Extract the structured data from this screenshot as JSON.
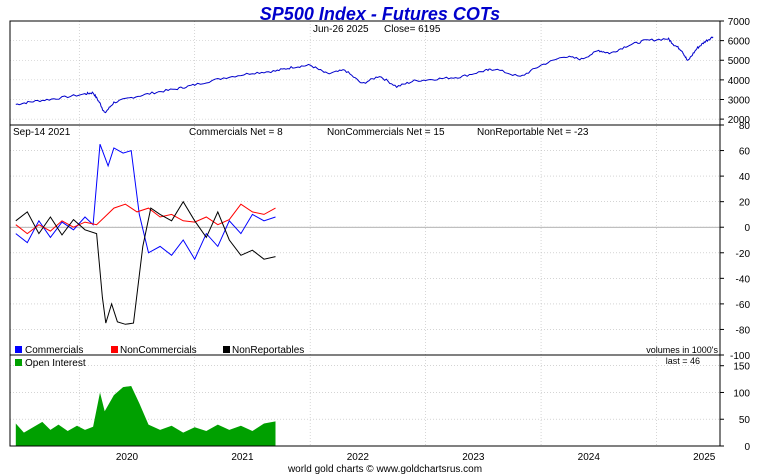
{
  "header": {
    "title": "SP500 Index - Futures COTs",
    "subtitle_date": "Jun-26  2025",
    "subtitle_close": "Close= 6195"
  },
  "info_bar": {
    "date": "Sep-14  2021",
    "commercials": "Commercials Net = 8",
    "noncommercials": "NonCommercials Net = 15",
    "nonreportable": "NonReportable Net = -23"
  },
  "legend": {
    "commercials": "Commercials",
    "noncommercials": "NonCommercials",
    "nonreportables": "NonReportables",
    "open_interest": "Open Interest",
    "volumes_note": "volumes in 1000's",
    "last_note": "last = 46"
  },
  "footer": "world gold charts © www.goldchartsrus.com",
  "colors": {
    "price": "#0000cc",
    "commercials": "#0000ff",
    "noncommercials": "#ff0000",
    "nonreportables": "#000000",
    "open_interest": "#00a000",
    "grid": "#bbbbbb",
    "title": "#0000cc"
  },
  "chart_data": [
    {
      "type": "line",
      "panel": "price",
      "x_ticks": [
        "2020",
        "2021",
        "2022",
        "2023",
        "2024",
        "2025"
      ],
      "ylim": [
        1700,
        7000
      ],
      "y_ticks": [
        2000,
        3000,
        4000,
        5000,
        6000,
        7000
      ],
      "series": [
        {
          "values": [
            {
              "x": 2019.45,
              "y": 2750
            },
            {
              "x": 2019.6,
              "y": 2900
            },
            {
              "x": 2019.8,
              "y": 3050
            },
            {
              "x": 2020.05,
              "y": 3280
            },
            {
              "x": 2020.12,
              "y": 3350
            },
            {
              "x": 2020.18,
              "y": 2800
            },
            {
              "x": 2020.22,
              "y": 2300
            },
            {
              "x": 2020.3,
              "y": 2850
            },
            {
              "x": 2020.45,
              "y": 3100
            },
            {
              "x": 2020.65,
              "y": 3350
            },
            {
              "x": 2020.85,
              "y": 3550
            },
            {
              "x": 2021.0,
              "y": 3750
            },
            {
              "x": 2021.25,
              "y": 4100
            },
            {
              "x": 2021.5,
              "y": 4350
            },
            {
              "x": 2021.7,
              "y": 4450
            },
            {
              "x": 2021.85,
              "y": 4650
            },
            {
              "x": 2022.0,
              "y": 4750
            },
            {
              "x": 2022.15,
              "y": 4300
            },
            {
              "x": 2022.3,
              "y": 4500
            },
            {
              "x": 2022.45,
              "y": 3800
            },
            {
              "x": 2022.6,
              "y": 4200
            },
            {
              "x": 2022.75,
              "y": 3650
            },
            {
              "x": 2022.9,
              "y": 3950
            },
            {
              "x": 2023.1,
              "y": 4050
            },
            {
              "x": 2023.3,
              "y": 4150
            },
            {
              "x": 2023.5,
              "y": 4450
            },
            {
              "x": 2023.6,
              "y": 4550
            },
            {
              "x": 2023.82,
              "y": 4150
            },
            {
              "x": 2024.0,
              "y": 4750
            },
            {
              "x": 2024.2,
              "y": 5200
            },
            {
              "x": 2024.35,
              "y": 5050
            },
            {
              "x": 2024.5,
              "y": 5500
            },
            {
              "x": 2024.6,
              "y": 5350
            },
            {
              "x": 2024.75,
              "y": 5750
            },
            {
              "x": 2024.9,
              "y": 6000
            },
            {
              "x": 2025.1,
              "y": 6100
            },
            {
              "x": 2025.15,
              "y": 5800
            },
            {
              "x": 2025.22,
              "y": 5500
            },
            {
              "x": 2025.27,
              "y": 4950
            },
            {
              "x": 2025.35,
              "y": 5600
            },
            {
              "x": 2025.42,
              "y": 5950
            },
            {
              "x": 2025.49,
              "y": 6195
            }
          ]
        }
      ]
    },
    {
      "type": "line",
      "panel": "net_positions",
      "ylim": [
        -100,
        80
      ],
      "y_ticks": [
        -100,
        -80,
        -60,
        -40,
        -20,
        0,
        20,
        40,
        60,
        80
      ],
      "series": [
        {
          "name": "Commercials",
          "values": [
            {
              "x": 2019.45,
              "y": -5
            },
            {
              "x": 2019.55,
              "y": -12
            },
            {
              "x": 2019.65,
              "y": 5
            },
            {
              "x": 2019.75,
              "y": -8
            },
            {
              "x": 2019.85,
              "y": 4
            },
            {
              "x": 2019.95,
              "y": -2
            },
            {
              "x": 2020.05,
              "y": 8
            },
            {
              "x": 2020.12,
              "y": 2
            },
            {
              "x": 2020.18,
              "y": 65
            },
            {
              "x": 2020.25,
              "y": 48
            },
            {
              "x": 2020.3,
              "y": 62
            },
            {
              "x": 2020.38,
              "y": 58
            },
            {
              "x": 2020.45,
              "y": 60
            },
            {
              "x": 2020.52,
              "y": 10
            },
            {
              "x": 2020.6,
              "y": -20
            },
            {
              "x": 2020.7,
              "y": -15
            },
            {
              "x": 2020.8,
              "y": -22
            },
            {
              "x": 2020.9,
              "y": -10
            },
            {
              "x": 2021.0,
              "y": -25
            },
            {
              "x": 2021.1,
              "y": -5
            },
            {
              "x": 2021.2,
              "y": -15
            },
            {
              "x": 2021.3,
              "y": 5
            },
            {
              "x": 2021.4,
              "y": -5
            },
            {
              "x": 2021.5,
              "y": 10
            },
            {
              "x": 2021.6,
              "y": 5
            },
            {
              "x": 2021.7,
              "y": 8
            }
          ]
        },
        {
          "name": "NonCommercials",
          "values": [
            {
              "x": 2019.45,
              "y": 2
            },
            {
              "x": 2019.55,
              "y": -5
            },
            {
              "x": 2019.65,
              "y": 2
            },
            {
              "x": 2019.75,
              "y": -3
            },
            {
              "x": 2019.85,
              "y": 5
            },
            {
              "x": 2019.95,
              "y": 0
            },
            {
              "x": 2020.05,
              "y": 4
            },
            {
              "x": 2020.15,
              "y": 2
            },
            {
              "x": 2020.22,
              "y": 8
            },
            {
              "x": 2020.3,
              "y": 15
            },
            {
              "x": 2020.4,
              "y": 18
            },
            {
              "x": 2020.5,
              "y": 12
            },
            {
              "x": 2020.6,
              "y": 15
            },
            {
              "x": 2020.7,
              "y": 8
            },
            {
              "x": 2020.8,
              "y": 10
            },
            {
              "x": 2020.9,
              "y": 5
            },
            {
              "x": 2021.0,
              "y": 4
            },
            {
              "x": 2021.1,
              "y": 8
            },
            {
              "x": 2021.2,
              "y": 2
            },
            {
              "x": 2021.3,
              "y": 6
            },
            {
              "x": 2021.4,
              "y": 18
            },
            {
              "x": 2021.5,
              "y": 12
            },
            {
              "x": 2021.6,
              "y": 10
            },
            {
              "x": 2021.7,
              "y": 15
            }
          ]
        },
        {
          "name": "NonReportables",
          "values": [
            {
              "x": 2019.45,
              "y": 5
            },
            {
              "x": 2019.55,
              "y": 12
            },
            {
              "x": 2019.65,
              "y": -5
            },
            {
              "x": 2019.75,
              "y": 8
            },
            {
              "x": 2019.85,
              "y": -6
            },
            {
              "x": 2019.95,
              "y": 6
            },
            {
              "x": 2020.05,
              "y": -2
            },
            {
              "x": 2020.15,
              "y": -5
            },
            {
              "x": 2020.2,
              "y": -55
            },
            {
              "x": 2020.23,
              "y": -75
            },
            {
              "x": 2020.28,
              "y": -60
            },
            {
              "x": 2020.33,
              "y": -74
            },
            {
              "x": 2020.4,
              "y": -76
            },
            {
              "x": 2020.47,
              "y": -75
            },
            {
              "x": 2020.55,
              "y": -15
            },
            {
              "x": 2020.62,
              "y": 15
            },
            {
              "x": 2020.7,
              "y": 10
            },
            {
              "x": 2020.8,
              "y": 5
            },
            {
              "x": 2020.9,
              "y": 20
            },
            {
              "x": 2021.0,
              "y": 5
            },
            {
              "x": 2021.1,
              "y": -8
            },
            {
              "x": 2021.2,
              "y": 12
            },
            {
              "x": 2021.3,
              "y": -10
            },
            {
              "x": 2021.4,
              "y": -22
            },
            {
              "x": 2021.5,
              "y": -18
            },
            {
              "x": 2021.6,
              "y": -25
            },
            {
              "x": 2021.7,
              "y": -23
            }
          ]
        }
      ]
    },
    {
      "type": "area",
      "panel": "open_interest",
      "ylim": [
        0,
        170
      ],
      "y_ticks": [
        0,
        50,
        100,
        150
      ],
      "series": [
        {
          "name": "Open Interest",
          "values": [
            {
              "x": 2019.45,
              "y": 42
            },
            {
              "x": 2019.52,
              "y": 25
            },
            {
              "x": 2019.6,
              "y": 35
            },
            {
              "x": 2019.68,
              "y": 45
            },
            {
              "x": 2019.75,
              "y": 30
            },
            {
              "x": 2019.82,
              "y": 40
            },
            {
              "x": 2019.9,
              "y": 28
            },
            {
              "x": 2019.98,
              "y": 38
            },
            {
              "x": 2020.05,
              "y": 30
            },
            {
              "x": 2020.12,
              "y": 36
            },
            {
              "x": 2020.18,
              "y": 100
            },
            {
              "x": 2020.22,
              "y": 65
            },
            {
              "x": 2020.3,
              "y": 95
            },
            {
              "x": 2020.38,
              "y": 110
            },
            {
              "x": 2020.45,
              "y": 112
            },
            {
              "x": 2020.52,
              "y": 80
            },
            {
              "x": 2020.6,
              "y": 40
            },
            {
              "x": 2020.7,
              "y": 30
            },
            {
              "x": 2020.8,
              "y": 38
            },
            {
              "x": 2020.9,
              "y": 25
            },
            {
              "x": 2021.0,
              "y": 35
            },
            {
              "x": 2021.1,
              "y": 28
            },
            {
              "x": 2021.2,
              "y": 40
            },
            {
              "x": 2021.3,
              "y": 30
            },
            {
              "x": 2021.4,
              "y": 38
            },
            {
              "x": 2021.5,
              "y": 28
            },
            {
              "x": 2021.6,
              "y": 42
            },
            {
              "x": 2021.7,
              "y": 46
            }
          ]
        }
      ]
    }
  ]
}
